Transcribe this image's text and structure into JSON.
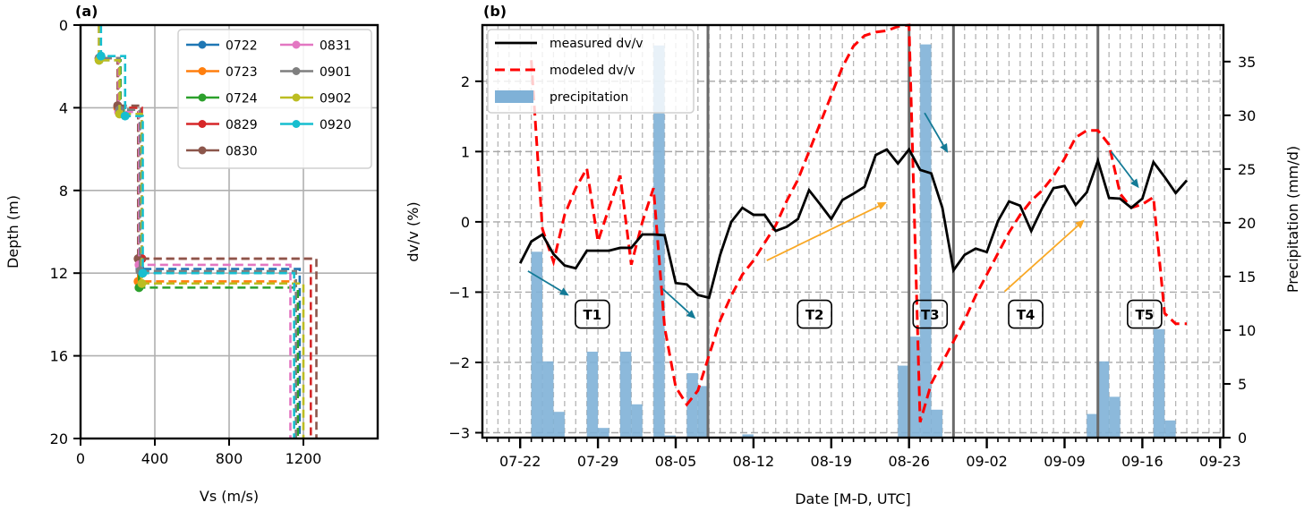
{
  "figure": {
    "panels": [
      "(a)",
      "(b)"
    ]
  },
  "chart_data": [
    {
      "id": "a",
      "type": "line",
      "panel_label": "(a)",
      "xlabel": "Vs (m/s)",
      "ylabel": "Depth (m)",
      "xlim": [
        0,
        1600
      ],
      "ylim": [
        20,
        0
      ],
      "xticks": [
        0,
        400,
        800,
        1200
      ],
      "yticks": [
        0,
        4,
        8,
        12,
        16,
        20
      ],
      "grid": true,
      "legend": {
        "placement": "top-right",
        "columns": 2
      },
      "series": [
        {
          "name": "0722",
          "color": "#1f77b4",
          "profile": [
            [
              100,
              0
            ],
            [
              100,
              1.6
            ],
            [
              210,
              1.6
            ],
            [
              210,
              4.1
            ],
            [
              320,
              4.1
            ],
            [
              320,
              11.8
            ],
            [
              1180,
              11.8
            ],
            [
              1180,
              20
            ]
          ]
        },
        {
          "name": "0723",
          "color": "#ff7f0e",
          "profile": [
            [
              100,
              0
            ],
            [
              100,
              1.6
            ],
            [
              200,
              1.6
            ],
            [
              200,
              4.0
            ],
            [
              310,
              4.0
            ],
            [
              310,
              12.4
            ],
            [
              1160,
              12.4
            ],
            [
              1160,
              20
            ]
          ]
        },
        {
          "name": "0724",
          "color": "#2ca02c",
          "profile": [
            [
              100,
              0
            ],
            [
              100,
              1.7
            ],
            [
              215,
              1.7
            ],
            [
              215,
              4.1
            ],
            [
              315,
              4.1
            ],
            [
              315,
              12.7
            ],
            [
              1170,
              12.7
            ],
            [
              1170,
              20
            ]
          ]
        },
        {
          "name": "0829",
          "color": "#d62728",
          "profile": [
            [
              100,
              0
            ],
            [
              100,
              1.6
            ],
            [
              205,
              1.6
            ],
            [
              205,
              4.0
            ],
            [
              330,
              4.0
            ],
            [
              330,
              11.3
            ],
            [
              1240,
              11.3
            ],
            [
              1240,
              20
            ]
          ]
        },
        {
          "name": "0830",
          "color": "#8c564b",
          "profile": [
            [
              100,
              0
            ],
            [
              100,
              1.6
            ],
            [
              200,
              1.6
            ],
            [
              200,
              3.9
            ],
            [
              310,
              3.9
            ],
            [
              310,
              11.3
            ],
            [
              1270,
              11.3
            ],
            [
              1270,
              20
            ]
          ]
        },
        {
          "name": "0831",
          "color": "#e377c2",
          "profile": [
            [
              100,
              0
            ],
            [
              100,
              1.6
            ],
            [
              205,
              1.6
            ],
            [
              205,
              4.2
            ],
            [
              315,
              4.2
            ],
            [
              315,
              11.6
            ],
            [
              1130,
              11.6
            ],
            [
              1130,
              20
            ]
          ]
        },
        {
          "name": "0901",
          "color": "#7f7f7f",
          "profile": [
            [
              100,
              0
            ],
            [
              100,
              1.6
            ],
            [
              210,
              1.6
            ],
            [
              210,
              4.1
            ],
            [
              320,
              4.1
            ],
            [
              320,
              11.9
            ],
            [
              1160,
              11.9
            ],
            [
              1160,
              20
            ]
          ]
        },
        {
          "name": "0902",
          "color": "#bcbd22",
          "profile": [
            [
              100,
              0
            ],
            [
              100,
              1.7
            ],
            [
              210,
              1.7
            ],
            [
              210,
              4.3
            ],
            [
              330,
              4.3
            ],
            [
              330,
              12.5
            ],
            [
              1200,
              12.5
            ],
            [
              1200,
              20
            ]
          ]
        },
        {
          "name": "0920",
          "color": "#17becf",
          "profile": [
            [
              110,
              0
            ],
            [
              110,
              1.5
            ],
            [
              240,
              1.5
            ],
            [
              240,
              4.4
            ],
            [
              335,
              4.4
            ],
            [
              335,
              12.0
            ],
            [
              1150,
              12.0
            ],
            [
              1150,
              20
            ]
          ]
        }
      ]
    },
    {
      "id": "b",
      "type": "line",
      "panel_label": "(b)",
      "xlabel": "Date [M-D, UTC]",
      "ylabel": "dv/v (%)",
      "ylabel_right": "Precipitation (mm/d)",
      "x_start_date": "07-22",
      "xlim_days": [
        -3.4,
        63.3
      ],
      "ylim": [
        -3.07,
        2.8
      ],
      "ylim_right": [
        0,
        38.4
      ],
      "xticks": [
        {
          "day": 0,
          "label": "07-22"
        },
        {
          "day": 7,
          "label": "07-29"
        },
        {
          "day": 14,
          "label": "08-05"
        },
        {
          "day": 21,
          "label": "08-12"
        },
        {
          "day": 28,
          "label": "08-19"
        },
        {
          "day": 35,
          "label": "08-26"
        },
        {
          "day": 42,
          "label": "09-02"
        },
        {
          "day": 49,
          "label": "09-09"
        },
        {
          "day": 56,
          "label": "09-16"
        },
        {
          "day": 63,
          "label": "09-23"
        }
      ],
      "yticks": [
        -3,
        -2,
        -1,
        0,
        1,
        2
      ],
      "yticks_right": [
        0,
        5,
        10,
        15,
        20,
        25,
        30,
        35
      ],
      "grid": true,
      "legend": {
        "placement": "top-left",
        "entries": [
          {
            "label": "measured dv/v",
            "style": "solid",
            "color": "#000000"
          },
          {
            "label": "modeled dv/v",
            "style": "dashed",
            "color": "#ff0000"
          },
          {
            "label": "precipitation",
            "style": "bar",
            "color": "#7fb1d7"
          }
        ]
      },
      "series": [
        {
          "name": "measured dv/v",
          "color": "#000000",
          "days": [
            0,
            1,
            2,
            3,
            4,
            5,
            6,
            7,
            8,
            9,
            10,
            11,
            12,
            13,
            14,
            15,
            16,
            17,
            18,
            19,
            20,
            21,
            22,
            23,
            24,
            25,
            26,
            27,
            28,
            29,
            30,
            31,
            32,
            33,
            34,
            35,
            36,
            37,
            38,
            39,
            40,
            41,
            42,
            43,
            44,
            45,
            46,
            47,
            48,
            49,
            50,
            51,
            52,
            53,
            54,
            55,
            56,
            57,
            58,
            59,
            60
          ],
          "values": [
            -0.59,
            -0.28,
            -0.18,
            -0.46,
            -0.62,
            -0.66,
            -0.41,
            -0.41,
            -0.41,
            -0.37,
            -0.37,
            -0.18,
            -0.18,
            -0.19,
            -0.87,
            -0.89,
            -1.04,
            -1.08,
            -0.47,
            0.0,
            0.2,
            0.1,
            0.1,
            -0.13,
            -0.07,
            0.04,
            0.45,
            0.25,
            0.04,
            0.31,
            0.4,
            0.5,
            0.95,
            1.03,
            0.83,
            1.03,
            0.74,
            0.69,
            0.2,
            -0.69,
            -0.47,
            -0.38,
            -0.43,
            0.01,
            0.29,
            0.23,
            -0.13,
            0.2,
            0.48,
            0.51,
            0.24,
            0.42,
            0.87,
            0.34,
            0.33,
            0.2,
            0.33,
            0.85,
            0.64,
            0.41,
            0.59
          ]
        },
        {
          "name": "modeled dv/v",
          "color": "#ff0000",
          "days": [
            1,
            2,
            3,
            4,
            5,
            6,
            7,
            8,
            9,
            10,
            11,
            12,
            13,
            14,
            15,
            16,
            17,
            18,
            19,
            20,
            21,
            22,
            23,
            24,
            25,
            26,
            27,
            28,
            29,
            30,
            31,
            32,
            33,
            34,
            35,
            36,
            37,
            38,
            39,
            40,
            41,
            42,
            43,
            44,
            45,
            46,
            47,
            48,
            49,
            50,
            51,
            52,
            53,
            54,
            55,
            56,
            57,
            58,
            59,
            60
          ],
          "values": [
            2.3,
            -0.1,
            -0.57,
            0.1,
            0.48,
            0.76,
            -0.28,
            0.2,
            0.66,
            -0.61,
            0.0,
            0.48,
            -1.5,
            -2.35,
            -2.6,
            -2.4,
            -1.9,
            -1.4,
            -1.05,
            -0.75,
            -0.55,
            -0.3,
            -0.05,
            0.3,
            0.6,
            1.0,
            1.4,
            1.8,
            2.2,
            2.5,
            2.65,
            2.7,
            2.72,
            2.78,
            2.8,
            -2.85,
            -2.3,
            -2.0,
            -1.7,
            -1.4,
            -1.05,
            -0.75,
            -0.45,
            -0.15,
            0.1,
            0.3,
            0.45,
            0.65,
            0.9,
            1.2,
            1.3,
            1.3,
            1.1,
            0.4,
            0.2,
            0.25,
            0.35,
            -1.3,
            -1.45,
            -1.45
          ]
        }
      ],
      "bars": {
        "name": "precipitation",
        "color": "#7fb1d7",
        "days": [
          1.5,
          2.5,
          3.5,
          6.5,
          7.5,
          9.5,
          10.5,
          12.5,
          13.5,
          15.5,
          16.5,
          20.5,
          34.5,
          35.5,
          36.5,
          37.5,
          51.5,
          52.5,
          53.5,
          57.5,
          58.5
        ],
        "values": [
          17.3,
          7.1,
          2.4,
          8.0,
          0.9,
          8.0,
          3.1,
          36.5,
          0.2,
          6.0,
          4.8,
          0.3,
          6.7,
          9.4,
          36.6,
          2.6,
          2.2,
          7.1,
          3.8,
          10.1,
          1.6
        ]
      },
      "period_boundaries_days": [
        16.9,
        35,
        39,
        52
      ],
      "period_labels": [
        {
          "label": "T1",
          "day": 6.5,
          "value": -1.32
        },
        {
          "label": "T2",
          "day": 26.5,
          "value": -1.32
        },
        {
          "label": "T3",
          "day": 36.9,
          "value": -1.32
        },
        {
          "label": "T4",
          "day": 45.5,
          "value": -1.32
        },
        {
          "label": "T5",
          "day": 56.2,
          "value": -1.32
        }
      ],
      "arrows": [
        {
          "color": "#137a96",
          "from": [
            0.7,
            -0.7
          ],
          "to": [
            4.4,
            -1.05
          ]
        },
        {
          "color": "#137a96",
          "from": [
            12.8,
            -0.95
          ],
          "to": [
            15.8,
            -1.38
          ]
        },
        {
          "color": "#137a96",
          "from": [
            36.4,
            1.55
          ],
          "to": [
            38.5,
            0.98
          ]
        },
        {
          "color": "#137a96",
          "from": [
            53.2,
            1.0
          ],
          "to": [
            55.7,
            0.48
          ]
        },
        {
          "color": "#f9a825",
          "from": [
            22.2,
            -0.55
          ],
          "to": [
            33.0,
            0.28
          ]
        },
        {
          "color": "#f9a825",
          "from": [
            43.6,
            -0.99
          ],
          "to": [
            50.8,
            0.03
          ]
        }
      ]
    }
  ]
}
